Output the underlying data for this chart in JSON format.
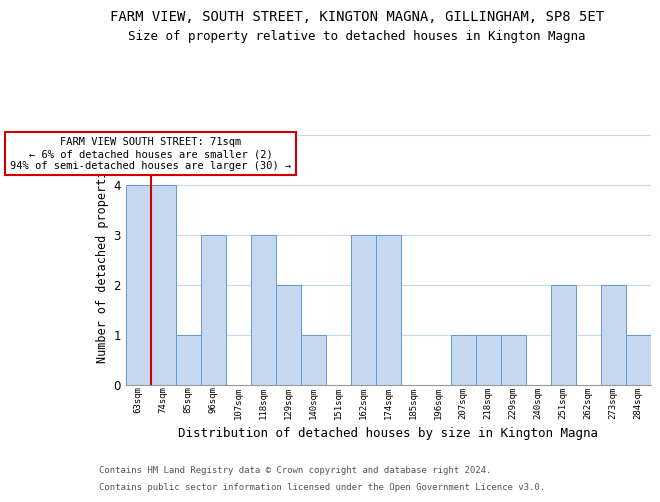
{
  "title": "FARM VIEW, SOUTH STREET, KINGTON MAGNA, GILLINGHAM, SP8 5ET",
  "subtitle": "Size of property relative to detached houses in Kington Magna",
  "xlabel": "Distribution of detached houses by size in Kington Magna",
  "ylabel": "Number of detached properties",
  "categories": [
    "63sqm",
    "74sqm",
    "85sqm",
    "96sqm",
    "107sqm",
    "118sqm",
    "129sqm",
    "140sqm",
    "151sqm",
    "162sqm",
    "174sqm",
    "185sqm",
    "196sqm",
    "207sqm",
    "218sqm",
    "229sqm",
    "240sqm",
    "251sqm",
    "262sqm",
    "273sqm",
    "284sqm"
  ],
  "values": [
    4,
    4,
    1,
    3,
    0,
    3,
    2,
    1,
    0,
    3,
    3,
    0,
    0,
    1,
    1,
    1,
    0,
    2,
    0,
    2,
    1
  ],
  "bar_color": "#c5d8f0",
  "bar_edge_color": "#5b9bd5",
  "subject_line_color": "#cc0000",
  "ylim": [
    0,
    5
  ],
  "yticks": [
    0,
    1,
    2,
    3,
    4,
    5
  ],
  "annotation_text": "FARM VIEW SOUTH STREET: 71sqm\n← 6% of detached houses are smaller (2)\n94% of semi-detached houses are larger (30) →",
  "annotation_box_color": "#ffffff",
  "annotation_box_edgecolor": "#cc0000",
  "footer_line1": "Contains HM Land Registry data © Crown copyright and database right 2024.",
  "footer_line2": "Contains public sector information licensed under the Open Government Licence v3.0.",
  "bg_color": "#ffffff",
  "grid_color": "#c8d8e8",
  "title_fontsize": 10,
  "subtitle_fontsize": 9,
  "ylabel_fontsize": 8.5,
  "xlabel_fontsize": 9
}
